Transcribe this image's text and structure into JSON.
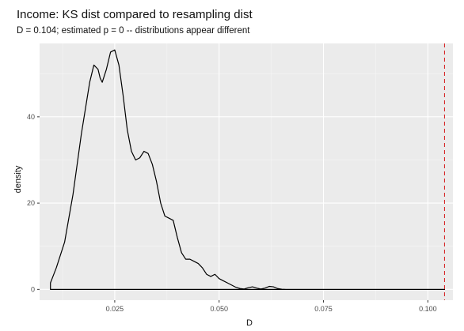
{
  "chart_data": {
    "type": "line",
    "title": "Income: KS dist compared to resampling dist",
    "subtitle": "D = 0.104; estimated p = 0 -- distributions appear different",
    "xlabel": "D",
    "ylabel": "density",
    "xlim": [
      0.007,
      0.106
    ],
    "ylim": [
      -2.5,
      57
    ],
    "x_ticks": [
      0.025,
      0.05,
      0.075,
      0.1
    ],
    "x_tick_labels": [
      "0.025",
      "0.050",
      "0.075",
      "0.100"
    ],
    "y_ticks": [
      0,
      20,
      40
    ],
    "y_tick_labels": [
      "0",
      "20",
      "40"
    ],
    "grid": true,
    "legend": "none",
    "reference_line": {
      "x": 0.104,
      "style": "dashed",
      "color": "#d62728"
    },
    "series": [
      {
        "x": [
          0.0096,
          0.01,
          0.011,
          0.013,
          0.015,
          0.017,
          0.019,
          0.02,
          0.021,
          0.0215,
          0.022,
          0.023,
          0.024,
          0.025,
          0.026,
          0.027,
          0.028,
          0.029,
          0.03,
          0.031,
          0.032,
          0.033,
          0.034,
          0.035,
          0.036,
          0.037,
          0.038,
          0.039,
          0.04,
          0.041,
          0.042,
          0.043,
          0.044,
          0.045,
          0.046,
          0.047,
          0.048,
          0.049,
          0.05,
          0.051,
          0.052,
          0.053,
          0.054,
          0.055,
          0.056,
          0.057,
          0.058,
          0.059,
          0.06,
          0.061,
          0.062,
          0.063,
          0.064,
          0.065,
          0.066,
          0.07,
          0.08,
          0.09,
          0.1,
          0.104
        ],
        "y": [
          1.5,
          2.5,
          5.0,
          11.0,
          22.0,
          36.0,
          48.0,
          52.0,
          51.0,
          49.0,
          48.0,
          51.0,
          55.0,
          55.5,
          52.0,
          45.0,
          37.0,
          32.0,
          30.0,
          30.5,
          32.0,
          31.5,
          29.0,
          25.0,
          20.0,
          17.0,
          16.5,
          16.0,
          12.0,
          8.5,
          7.0,
          7.0,
          6.5,
          6.0,
          5.0,
          3.5,
          3.0,
          3.5,
          2.5,
          2.0,
          1.5,
          1.0,
          0.5,
          0.2,
          0.1,
          0.4,
          0.6,
          0.3,
          0.1,
          0.3,
          0.7,
          0.6,
          0.2,
          0.05,
          0.0,
          0.0,
          0.0,
          0.0,
          0.0,
          0.0
        ]
      }
    ]
  }
}
